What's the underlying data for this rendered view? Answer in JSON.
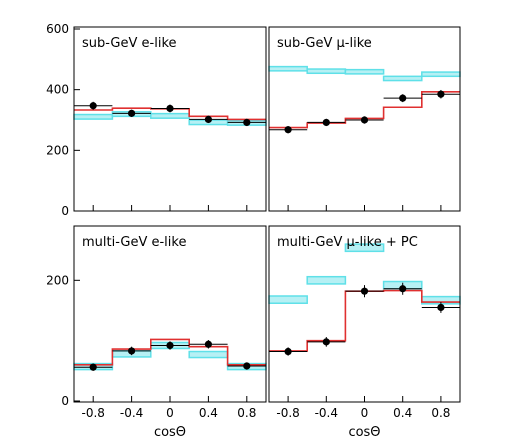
{
  "chart_data": [
    {
      "type": "histogram",
      "title": "sub-GeV e-like",
      "xlabel": "",
      "ylabel": "",
      "xlim": [
        -1,
        1
      ],
      "ylim": [
        0,
        600
      ],
      "yticks": [
        "0",
        "200",
        "400",
        "600"
      ],
      "xticks": [],
      "bins": [
        -0.8,
        -0.4,
        0.0,
        0.4,
        0.8
      ],
      "data": [
        347,
        322,
        338,
        302,
        292
      ],
      "data_err": [
        13,
        12,
        13,
        12,
        12
      ],
      "null_oscillation_band": [
        [
          303,
          318
        ],
        [
          312,
          327
        ],
        [
          306,
          321
        ],
        [
          285,
          300
        ],
        [
          283,
          298
        ]
      ],
      "oscillation_fit": [
        333,
        339,
        337,
        312,
        302
      ]
    },
    {
      "type": "histogram",
      "title": "sub-GeV μ-like",
      "xlabel": "",
      "ylabel": "",
      "xlim": [
        -1,
        1
      ],
      "ylim": [
        0,
        600
      ],
      "yticks": [],
      "xticks": [],
      "bins": [
        -0.8,
        -0.4,
        0.0,
        0.4,
        0.8
      ],
      "data": [
        268,
        292,
        300,
        372,
        385
      ],
      "data_err": [
        12,
        12,
        12,
        13,
        14
      ],
      "null_oscillation_band": [
        [
          462,
          476
        ],
        [
          454,
          468
        ],
        [
          452,
          466
        ],
        [
          430,
          444
        ],
        [
          444,
          458
        ]
      ],
      "oscillation_fit": [
        275,
        290,
        305,
        342,
        393
      ]
    },
    {
      "type": "histogram",
      "title": "multi-GeV e-like",
      "xlabel": "cosΘ",
      "ylabel": "",
      "xlim": [
        -1,
        1
      ],
      "ylim": [
        0,
        290
      ],
      "yticks": [
        "0",
        "200"
      ],
      "xticks": [
        "-0.8",
        "-0.4",
        "0",
        "0.4",
        "0.8"
      ],
      "bins": [
        -0.8,
        -0.4,
        0.0,
        0.4,
        0.8
      ],
      "data": [
        56,
        83,
        92,
        94,
        58
      ],
      "data_err": [
        6,
        7,
        7,
        7,
        6
      ],
      "null_oscillation_band": [
        [
          52,
          62
        ],
        [
          73,
          83
        ],
        [
          87,
          97
        ],
        [
          72,
          82
        ],
        [
          52,
          62
        ]
      ],
      "oscillation_fit": [
        60,
        86,
        102,
        90,
        60
      ]
    },
    {
      "type": "histogram",
      "title": "multi-GeV μ-like + PC",
      "xlabel": "cosΘ",
      "ylabel": "",
      "xlim": [
        -1,
        1
      ],
      "ylim": [
        0,
        290
      ],
      "yticks": [],
      "xticks": [
        "-0.8",
        "-0.4",
        "0",
        "0.4",
        "0.8"
      ],
      "bins": [
        -0.8,
        -0.4,
        0.0,
        0.4,
        0.8
      ],
      "data": [
        82,
        98,
        182,
        186,
        155
      ],
      "data_err": [
        7,
        8,
        10,
        10,
        9
      ],
      "null_oscillation_band": [
        [
          162,
          174
        ],
        [
          194,
          206
        ],
        [
          248,
          260
        ],
        [
          186,
          198
        ],
        [
          161,
          173
        ]
      ],
      "oscillation_fit": [
        83,
        100,
        182,
        183,
        164
      ]
    }
  ],
  "colors": {
    "data": "#000000",
    "null_oscillation_band": "#5fe0e8",
    "null_oscillation_band_fill": "#b6f0f4",
    "oscillation_fit": "#e03030",
    "frame": "#000000"
  }
}
